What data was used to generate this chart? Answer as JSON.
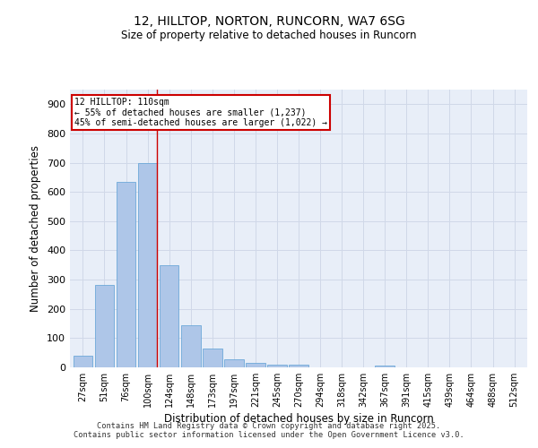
{
  "title1": "12, HILLTOP, NORTON, RUNCORN, WA7 6SG",
  "title2": "Size of property relative to detached houses in Runcorn",
  "xlabel": "Distribution of detached houses by size in Runcorn",
  "ylabel": "Number of detached properties",
  "categories": [
    "27sqm",
    "51sqm",
    "76sqm",
    "100sqm",
    "124sqm",
    "148sqm",
    "173sqm",
    "197sqm",
    "221sqm",
    "245sqm",
    "270sqm",
    "294sqm",
    "318sqm",
    "342sqm",
    "367sqm",
    "391sqm",
    "415sqm",
    "439sqm",
    "464sqm",
    "488sqm",
    "512sqm"
  ],
  "values": [
    40,
    283,
    633,
    700,
    350,
    145,
    65,
    28,
    15,
    10,
    8,
    0,
    0,
    0,
    5,
    0,
    0,
    0,
    0,
    0,
    0
  ],
  "bar_color": "#aec6e8",
  "bar_edge_color": "#5a9fd4",
  "annotation_line1": "12 HILLTOP: 110sqm",
  "annotation_line2": "← 55% of detached houses are smaller (1,237)",
  "annotation_line3": "45% of semi-detached houses are larger (1,022) →",
  "annotation_box_color": "#ffffff",
  "annotation_box_edge": "#cc0000",
  "grid_color": "#d0d8e8",
  "background_color": "#e8eef8",
  "footer": "Contains HM Land Registry data © Crown copyright and database right 2025.\nContains public sector information licensed under the Open Government Licence v3.0.",
  "ylim": [
    0,
    950
  ],
  "yticks": [
    0,
    100,
    200,
    300,
    400,
    500,
    600,
    700,
    800,
    900
  ]
}
